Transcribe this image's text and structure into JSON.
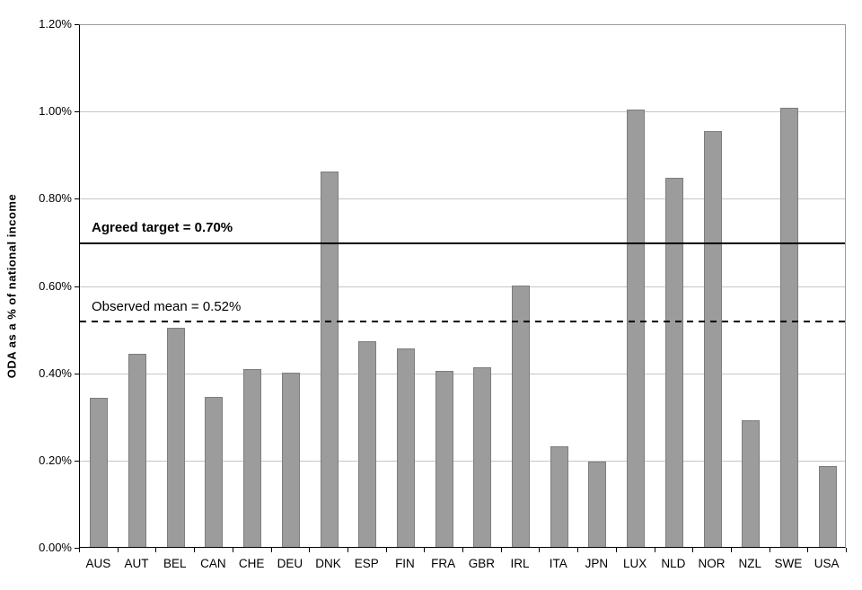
{
  "chart_data": {
    "type": "bar",
    "title": "",
    "xlabel": "",
    "ylabel": "ODA as a % of national income",
    "ylim": [
      0,
      1.2
    ],
    "y_tick_step": 0.2,
    "y_tick_labels": [
      "0.00%",
      "0.20%",
      "0.40%",
      "0.60%",
      "0.80%",
      "1.00%",
      "1.20%"
    ],
    "grid": "horizontal",
    "legend": "none",
    "categories": [
      "AUS",
      "AUT",
      "BEL",
      "CAN",
      "CHE",
      "DEU",
      "DNK",
      "ESP",
      "FIN",
      "FRA",
      "GBR",
      "IRL",
      "ITA",
      "JPN",
      "LUX",
      "NLD",
      "NOR",
      "NZL",
      "SWE",
      "USA"
    ],
    "values": [
      0.341,
      0.443,
      0.502,
      0.344,
      0.408,
      0.399,
      0.861,
      0.471,
      0.455,
      0.403,
      0.412,
      0.598,
      0.231,
      0.196,
      1.002,
      0.847,
      0.953,
      0.291,
      1.007,
      0.186
    ],
    "annotations": {
      "target": {
        "value": 0.7,
        "label": "Agreed target = 0.70%",
        "line_style": "solid",
        "bold": true
      },
      "mean": {
        "value": 0.52,
        "label": "Observed mean = 0.52%",
        "line_style": "dashed",
        "bold": false
      }
    },
    "colors": {
      "bar_fill": "#9c9c9c",
      "bar_border": "#7d7d7d",
      "gridline": "#c6c6c6",
      "axis": "#000000",
      "annotation_line": "#000000",
      "text": "#000000"
    }
  }
}
